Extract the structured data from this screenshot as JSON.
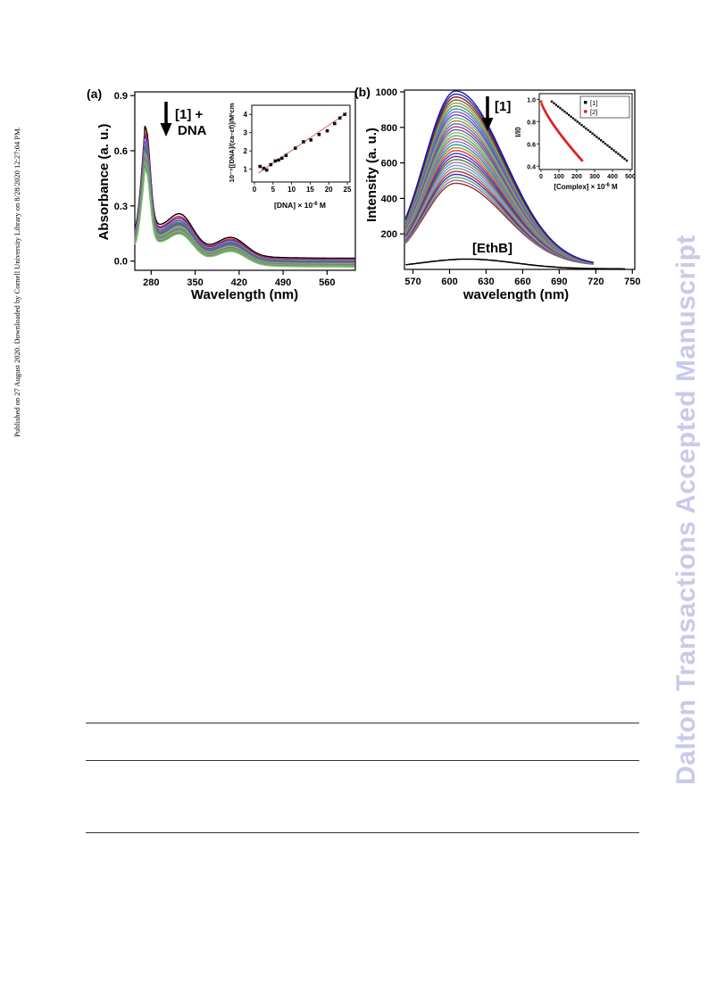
{
  "sidebar_text": "Published on 27 August 2020. Downloaded by Cornell University Library on 8/28/2020 12:27:04 PM.",
  "watermark": "Dalton Transactions Accepted Manuscript",
  "panels": {
    "a": {
      "label": "(a)",
      "annotation_line1": "[1] +",
      "annotation_line2": "DNA",
      "inset_xlabel": "[DNA] × 10",
      "inset_xlabel_exp": "-6",
      "inset_xlabel_unit": " M",
      "inset_ylabel": "10⁻⁹[[DNA]/(εa–εf)]/M²cm"
    },
    "b": {
      "label": "(b)",
      "annotation": "[1]",
      "ethb_label": "[EthB]",
      "inset_xlabel": "[Complex] × 10",
      "inset_xlabel_exp": "-6",
      "inset_xlabel_unit": " M",
      "inset_ylabel": "I/I0"
    }
  },
  "chart_data": [
    {
      "type": "line",
      "panel": "a",
      "xlabel": "Wavelength (nm)",
      "ylabel": "Absorbance (a. u.)",
      "xlim": [
        254,
        605
      ],
      "ylim": [
        -0.05,
        0.92
      ],
      "xticks": [
        280,
        350,
        420,
        490,
        560
      ],
      "yticks": [
        0.0,
        0.3,
        0.6,
        0.9
      ],
      "grid": false,
      "series_count": 18,
      "peak_x": 272,
      "peak_values": [
        0.85,
        0.82,
        0.8,
        0.78,
        0.77,
        0.75,
        0.74,
        0.73,
        0.72,
        0.71,
        0.7,
        0.69,
        0.68,
        0.67,
        0.66,
        0.65,
        0.64,
        0.63
      ],
      "baseline_offsets": [
        0.0,
        -0.005,
        -0.008,
        -0.011,
        -0.014,
        -0.017,
        -0.02,
        -0.022,
        -0.025,
        -0.027,
        -0.029,
        -0.031,
        -0.033,
        -0.035,
        -0.037,
        -0.039,
        -0.041,
        -0.043
      ],
      "series_colors": [
        "#000000",
        "#d62728",
        "#1f3fbf",
        "#e377c2",
        "#7f3fbf",
        "#2ca02c",
        "#1f77b4",
        "#8c564b",
        "#9467bd",
        "#17becf",
        "#bcbd22",
        "#6b6bd6",
        "#b07040",
        "#6f9f4f",
        "#a0a0a0",
        "#5faf8f",
        "#4f8f4f",
        "#7fbf6f"
      ]
    },
    {
      "type": "scatter",
      "panel": "a-inset",
      "xlabel": "[DNA] × 10-6 M",
      "ylabel": "10⁻⁹[[DNA]/(εa–εf)]/M²cm",
      "xlim": [
        0,
        25
      ],
      "ylim": [
        0.3,
        4.5
      ],
      "xticks": [
        0,
        5,
        10,
        15,
        20,
        25
      ],
      "yticks": [
        1,
        2,
        3,
        4
      ],
      "points_x": [
        1.5,
        2.5,
        3.3,
        4.4,
        5.6,
        6.5,
        7.4,
        8.5,
        11.0,
        13.2,
        15.2,
        17.4,
        19.6,
        21.6,
        23.0,
        24.3
      ],
      "points_y": [
        1.15,
        1.05,
        0.95,
        1.25,
        1.45,
        1.5,
        1.6,
        1.75,
        2.15,
        2.5,
        2.6,
        2.9,
        3.1,
        3.5,
        3.8,
        4.0
      ],
      "fit_line": {
        "x": [
          1.0,
          25.0
        ],
        "y": [
          0.78,
          4.1
        ]
      },
      "grid": false
    },
    {
      "type": "line",
      "panel": "b",
      "xlabel": "wavelength (nm)",
      "ylabel": "Intensity (a. u.)",
      "xlim": [
        563,
        752
      ],
      "ylim": [
        0,
        1010
      ],
      "xticks": [
        570,
        600,
        630,
        660,
        690,
        720,
        750
      ],
      "yticks": [
        200,
        400,
        600,
        800,
        1000
      ],
      "grid": false,
      "series_count": 32,
      "peak_x": 605,
      "peak_range": [
        985,
        465
      ],
      "ethb_peak": 55,
      "series_colors": [
        "#1a1aa8",
        "#2a2aa0",
        "#8c1f1f",
        "#6b6b2a",
        "#b0906a",
        "#4f9f4f",
        "#2a8fbf",
        "#9f4fbf",
        "#4f4fcf",
        "#6fbf6f",
        "#bf7f3f",
        "#3f7fbf",
        "#af3f6f",
        "#5f5fbf",
        "#8fbf4f",
        "#3faf8f",
        "#cf5f5f",
        "#7f7fdf",
        "#1f9f9f",
        "#af8f2f",
        "#df3f3f",
        "#3f3fdf",
        "#6f2f8f",
        "#2f8f2f",
        "#c06f9f",
        "#4fafdf",
        "#8f8f8f",
        "#bf2f2f",
        "#2f2fbf",
        "#5faf5f",
        "#af5faf",
        "#7f3f1f"
      ]
    },
    {
      "type": "scatter",
      "panel": "b-inset",
      "xlabel": "[Complex] × 10-6 M",
      "ylabel": "I/I0",
      "xlim": [
        -10,
        510
      ],
      "ylim": [
        0.37,
        1.05
      ],
      "xticks": [
        0,
        100,
        200,
        300,
        400,
        500
      ],
      "yticks": [
        0.4,
        0.6,
        0.8,
        1.0
      ],
      "legend": [
        "[1]",
        "[2]"
      ],
      "legend_placement": "top-right",
      "series": [
        {
          "name": "[1]",
          "color": "#111111",
          "x_start": 60,
          "x_end": 480,
          "y_start": 0.98,
          "y_end": 0.45,
          "count": 36,
          "curve": "linear"
        },
        {
          "name": "[2]",
          "color": "#e02020",
          "x_start": 0,
          "x_end": 230,
          "y_start": 0.98,
          "y_end": 0.45,
          "count": 60,
          "curve": "convex"
        }
      ],
      "grid": false
    }
  ]
}
